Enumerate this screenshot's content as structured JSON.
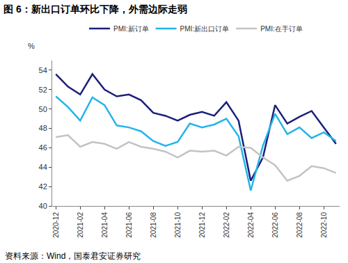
{
  "chart_data": {
    "type": "line",
    "title": "图 6：新出口订单环比下降，外需边际走弱",
    "ylabel": "%",
    "source": "资料来源：Wind，国泰君安证券研究",
    "categories": [
      "2020-12",
      null,
      "2021-02",
      null,
      "2021-04",
      null,
      "2021-06",
      null,
      "2021-08",
      null,
      "2021-10",
      null,
      "2021-12",
      null,
      "2022-02",
      null,
      "2022-04",
      null,
      "2022-06",
      null,
      "2022-08",
      null,
      "2022-10",
      null
    ],
    "series": [
      {
        "name": "PMI:新订单",
        "color": "#1b1f7a",
        "values": [
          53.6,
          52.3,
          51.5,
          53.6,
          52.0,
          51.3,
          51.5,
          50.9,
          49.6,
          49.3,
          48.8,
          49.4,
          49.7,
          49.3,
          50.7,
          48.8,
          42.6,
          45.0,
          50.4,
          48.5,
          49.2,
          49.8,
          48.1,
          46.4
        ]
      },
      {
        "name": "PMI:新出口订单",
        "color": "#22b5ea",
        "values": [
          51.3,
          50.2,
          48.8,
          51.2,
          50.4,
          48.3,
          48.1,
          47.7,
          46.7,
          46.2,
          46.6,
          48.5,
          48.1,
          48.4,
          49.0,
          47.2,
          41.6,
          46.2,
          49.5,
          47.4,
          48.1,
          47.0,
          47.6,
          46.7
        ]
      },
      {
        "name": "PMI:在手订单",
        "color": "#c3c3c3",
        "values": [
          47.1,
          47.3,
          46.1,
          46.6,
          46.4,
          45.9,
          46.6,
          46.1,
          45.9,
          45.6,
          45.0,
          45.7,
          45.6,
          45.7,
          45.2,
          46.1,
          46.0,
          45.0,
          44.2,
          42.6,
          43.1,
          44.1,
          43.9,
          43.4
        ]
      }
    ],
    "ylim": [
      40,
      55
    ],
    "yticks": [
      40,
      42,
      44,
      46,
      48,
      50,
      52,
      54
    ],
    "grid": false,
    "legend": "top"
  }
}
